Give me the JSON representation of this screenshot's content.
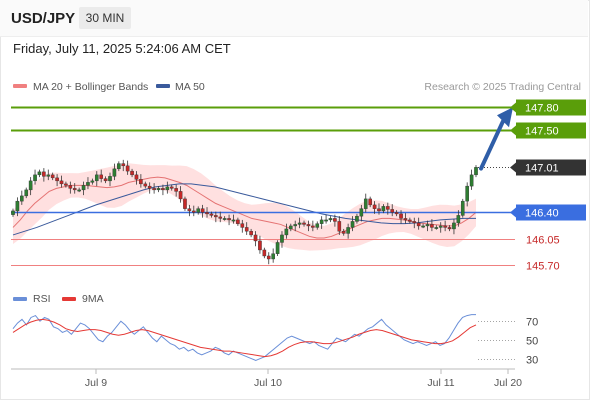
{
  "header": {
    "symbol": "USD/JPY",
    "timeframe": "30 MIN",
    "datetime": "Friday, July 11, 2025 5:24:06 AM CET"
  },
  "colors": {
    "candle_up": "#2e7d32",
    "candle_down": "#c62828",
    "ma20": "#e57373",
    "bollinger_fill": "#ffd6d6",
    "ma50": "#3a5a9c",
    "resistance": "#5a9e0a",
    "pivot": "#3a6ee0",
    "support": "#f08080",
    "arrow": "#2f5ea8",
    "current_price_box": "#333333",
    "rsi": "#6a8fd8",
    "rsi_ma": "#e53935"
  },
  "chart_data": [
    {
      "type": "candlestick",
      "title": "USD/JPY",
      "legend": [
        {
          "name": "MA 20 + Bollinger Bands",
          "color": "#f08080"
        },
        {
          "name": "MA 50",
          "color": "#3a5a9c"
        }
      ],
      "legend_position": "top-left",
      "watermark": "Research © 2025 Trading Central",
      "x_ticks": [
        "Jul 9",
        "Jul 10",
        "Jul 11",
        "Jul 20"
      ],
      "price_range": [
        145.5,
        147.95
      ],
      "close_series": [
        146.42,
        146.55,
        146.62,
        146.7,
        146.82,
        146.9,
        146.94,
        146.88,
        146.9,
        146.86,
        146.82,
        146.78,
        146.76,
        146.72,
        146.7,
        146.7,
        146.76,
        146.8,
        146.82,
        146.9,
        146.85,
        146.82,
        146.88,
        146.98,
        147.05,
        147.02,
        146.95,
        146.9,
        146.84,
        146.78,
        146.75,
        146.72,
        146.7,
        146.72,
        146.7,
        146.74,
        146.72,
        146.68,
        146.58,
        146.45,
        146.42,
        146.4,
        146.45,
        146.4,
        146.38,
        146.36,
        146.34,
        146.32,
        146.32,
        146.3,
        146.3,
        146.25,
        146.2,
        146.15,
        146.1,
        146.02,
        145.9,
        145.82,
        145.78,
        145.85,
        146.0,
        146.1,
        146.18,
        146.22,
        146.24,
        146.26,
        146.24,
        146.22,
        146.2,
        146.25,
        146.3,
        146.3,
        146.32,
        146.28,
        146.15,
        146.12,
        146.2,
        146.28,
        146.35,
        146.45,
        146.58,
        146.5,
        146.45,
        146.42,
        146.48,
        146.44,
        146.4,
        146.38,
        146.32,
        146.3,
        146.28,
        146.26,
        146.22,
        146.22,
        146.24,
        146.2,
        146.2,
        146.22,
        146.2,
        146.18,
        146.26,
        146.36,
        146.55,
        146.75,
        146.9,
        147.0
      ],
      "ma20": [
        146.2,
        146.3,
        146.42,
        146.52,
        146.6,
        146.68,
        146.72,
        146.74,
        146.76,
        146.76,
        146.76,
        146.75,
        146.74,
        146.73,
        146.74,
        146.76,
        146.8,
        146.82,
        146.84,
        146.86,
        146.87,
        146.86,
        146.83,
        146.8,
        146.76,
        146.7,
        146.64,
        146.58,
        146.52,
        146.48,
        146.44,
        146.4,
        146.36,
        146.32,
        146.3,
        146.28,
        146.26,
        146.24,
        146.2,
        146.16,
        146.12,
        146.08,
        146.06,
        146.06,
        146.08,
        146.12,
        146.16,
        146.2,
        146.24,
        146.28,
        146.3,
        146.32,
        146.32,
        146.31,
        146.3,
        146.28,
        146.26,
        146.25,
        146.24,
        146.23,
        146.22,
        146.22,
        146.26,
        146.32,
        146.4
      ],
      "ma50": [
        146.1,
        146.15,
        146.2,
        146.26,
        146.32,
        146.38,
        146.44,
        146.5,
        146.55,
        146.6,
        146.65,
        146.7,
        146.74,
        146.76,
        146.78,
        146.78,
        146.76,
        146.74,
        146.7,
        146.66,
        146.62,
        146.58,
        146.54,
        146.5,
        146.46,
        146.42,
        146.38,
        146.35,
        146.32,
        146.3,
        146.28,
        146.26,
        146.25,
        146.25,
        146.26,
        146.28,
        146.3,
        146.31,
        146.32,
        146.32
      ],
      "levels": [
        {
          "label": "147.80",
          "value": 147.8,
          "kind": "resistance"
        },
        {
          "label": "147.50",
          "value": 147.5,
          "kind": "resistance"
        },
        {
          "label": "147.01",
          "value": 147.01,
          "kind": "current"
        },
        {
          "label": "146.40",
          "value": 146.4,
          "kind": "pivot"
        },
        {
          "label": "146.05",
          "value": 146.05,
          "kind": "support"
        },
        {
          "label": "145.70",
          "value": 145.7,
          "kind": "support"
        }
      ],
      "projection": {
        "from": 147.01,
        "to": 147.8,
        "direction": "up"
      }
    },
    {
      "type": "line",
      "legend": [
        {
          "name": "RSI",
          "color": "#6a8fd8"
        },
        {
          "name": "9MA",
          "color": "#e53935"
        }
      ],
      "y_ticks": [
        "70",
        "50",
        "30"
      ],
      "yrange": [
        22,
        82
      ],
      "rsi": [
        62,
        68,
        72,
        66,
        74,
        76,
        70,
        74,
        72,
        64,
        62,
        58,
        60,
        56,
        62,
        68,
        66,
        62,
        56,
        50,
        48,
        54,
        58,
        64,
        70,
        66,
        60,
        56,
        60,
        64,
        58,
        52,
        48,
        54,
        50,
        46,
        44,
        40,
        42,
        38,
        40,
        36,
        34,
        36,
        38,
        42,
        40,
        36,
        34,
        38,
        36,
        34,
        32,
        30,
        28,
        30,
        32,
        36,
        40,
        44,
        48,
        52,
        54,
        52,
        50,
        48,
        46,
        48,
        44,
        42,
        40,
        46,
        52,
        50,
        48,
        52,
        56,
        54,
        58,
        62,
        64,
        68,
        72,
        66,
        62,
        58,
        54,
        50,
        48,
        46,
        48,
        46,
        44,
        46,
        48,
        44,
        46,
        52,
        60,
        68,
        74,
        76,
        77,
        77
      ],
      "rsi_ma": [
        58,
        62,
        66,
        69,
        71,
        72,
        71,
        69,
        66,
        62,
        60,
        59,
        60,
        61,
        61,
        60,
        58,
        56,
        55,
        56,
        58,
        60,
        61,
        60,
        58,
        56,
        54,
        52,
        50,
        48,
        46,
        44,
        42,
        41,
        40,
        39,
        38,
        38,
        37,
        36,
        35,
        34,
        33,
        32,
        33,
        35,
        38,
        42,
        45,
        47,
        48,
        48,
        47,
        46,
        46,
        47,
        49,
        51,
        53,
        56,
        58,
        60,
        61,
        60,
        58,
        56,
        54,
        52,
        50,
        49,
        48,
        47,
        46,
        46,
        47,
        49,
        53,
        58,
        63,
        66
      ]
    }
  ]
}
